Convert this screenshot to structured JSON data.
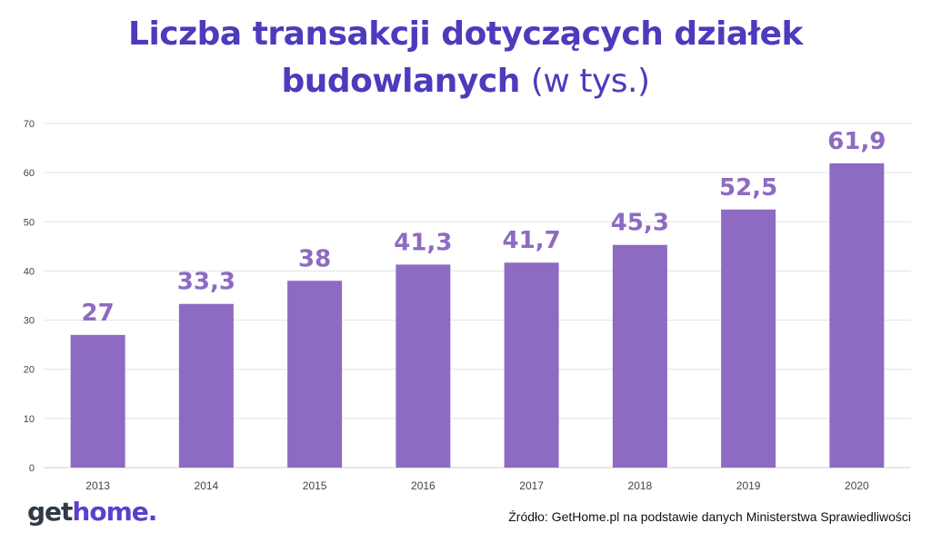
{
  "title": {
    "line1": "Liczba transakcji dotyczących działek",
    "line2_bold": "budowlanych",
    "line2_light": "(w tys.)"
  },
  "colors": {
    "title": "#4c3bbd",
    "bar": "#8e6bc2",
    "label": "#8e6bc2",
    "grid": "#e3e3e3"
  },
  "chart_data": {
    "type": "bar",
    "title": "Liczba transakcji dotyczących działek budowlanych (w tys.)",
    "categories": [
      "2013",
      "2014",
      "2015",
      "2016",
      "2017",
      "2018",
      "2019",
      "2020"
    ],
    "values": [
      27,
      33.3,
      38,
      41.3,
      41.7,
      45.3,
      52.5,
      61.9
    ],
    "value_labels": [
      "27",
      "33,3",
      "38",
      "41,3",
      "41,7",
      "45,3",
      "52,5",
      "61,9"
    ],
    "yticks": [
      "0",
      "10",
      "20",
      "30",
      "40",
      "50",
      "60",
      "70"
    ],
    "ylim": [
      0,
      70
    ],
    "grid": true,
    "xlabel": "",
    "ylabel": ""
  },
  "footer": {
    "logo_part1": "get",
    "logo_part2": "home.",
    "source": "Źródło: GetHome.pl na podstawie danych Ministerstwa Sprawiedliwości"
  }
}
